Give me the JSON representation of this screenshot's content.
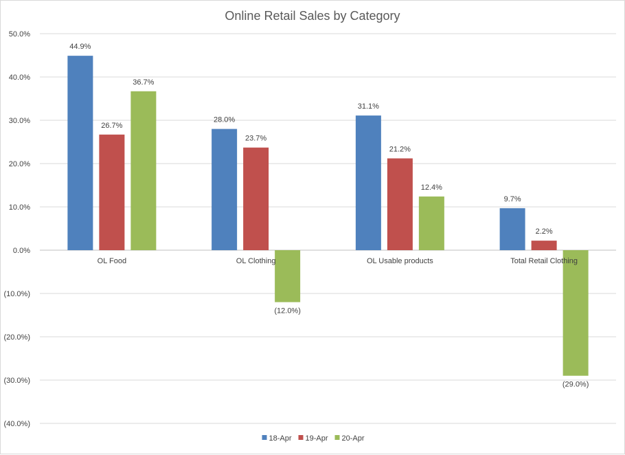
{
  "chart_data": {
    "type": "bar",
    "title": "Online Retail Sales by Category",
    "xlabel": "",
    "ylabel": "",
    "categories": [
      "OL Food",
      "OL Clothing",
      "OL Usable products",
      "Total Retail Clothing"
    ],
    "series": [
      {
        "name": "18-Apr",
        "color": "#4f81bd",
        "values": [
          44.9,
          28.0,
          31.1,
          9.7
        ],
        "labels": [
          "44.9%",
          "28.0%",
          "31.1%",
          "9.7%"
        ]
      },
      {
        "name": "19-Apr",
        "color": "#c0504d",
        "values": [
          26.7,
          23.7,
          21.2,
          2.2
        ],
        "labels": [
          "26.7%",
          "23.7%",
          "21.2%",
          "2.2%"
        ]
      },
      {
        "name": "20-Apr",
        "color": "#9bbb59",
        "values": [
          36.7,
          -12.0,
          12.4,
          -29.0
        ],
        "labels": [
          "36.7%",
          "(12.0%)",
          "12.4%",
          "(29.0%)"
        ]
      }
    ],
    "ylim": [
      -40,
      50
    ],
    "yticks": [
      50,
      40,
      30,
      20,
      10,
      0,
      -10,
      -20,
      -30,
      -40
    ],
    "ytick_labels": [
      "50.0%",
      "40.0%",
      "30.0%",
      "20.0%",
      "10.0%",
      "0.0%",
      "(10.0%)",
      "(20.0%)",
      "(30.0%)",
      "(40.0%)"
    ],
    "grid": true,
    "legend_position": "bottom"
  }
}
